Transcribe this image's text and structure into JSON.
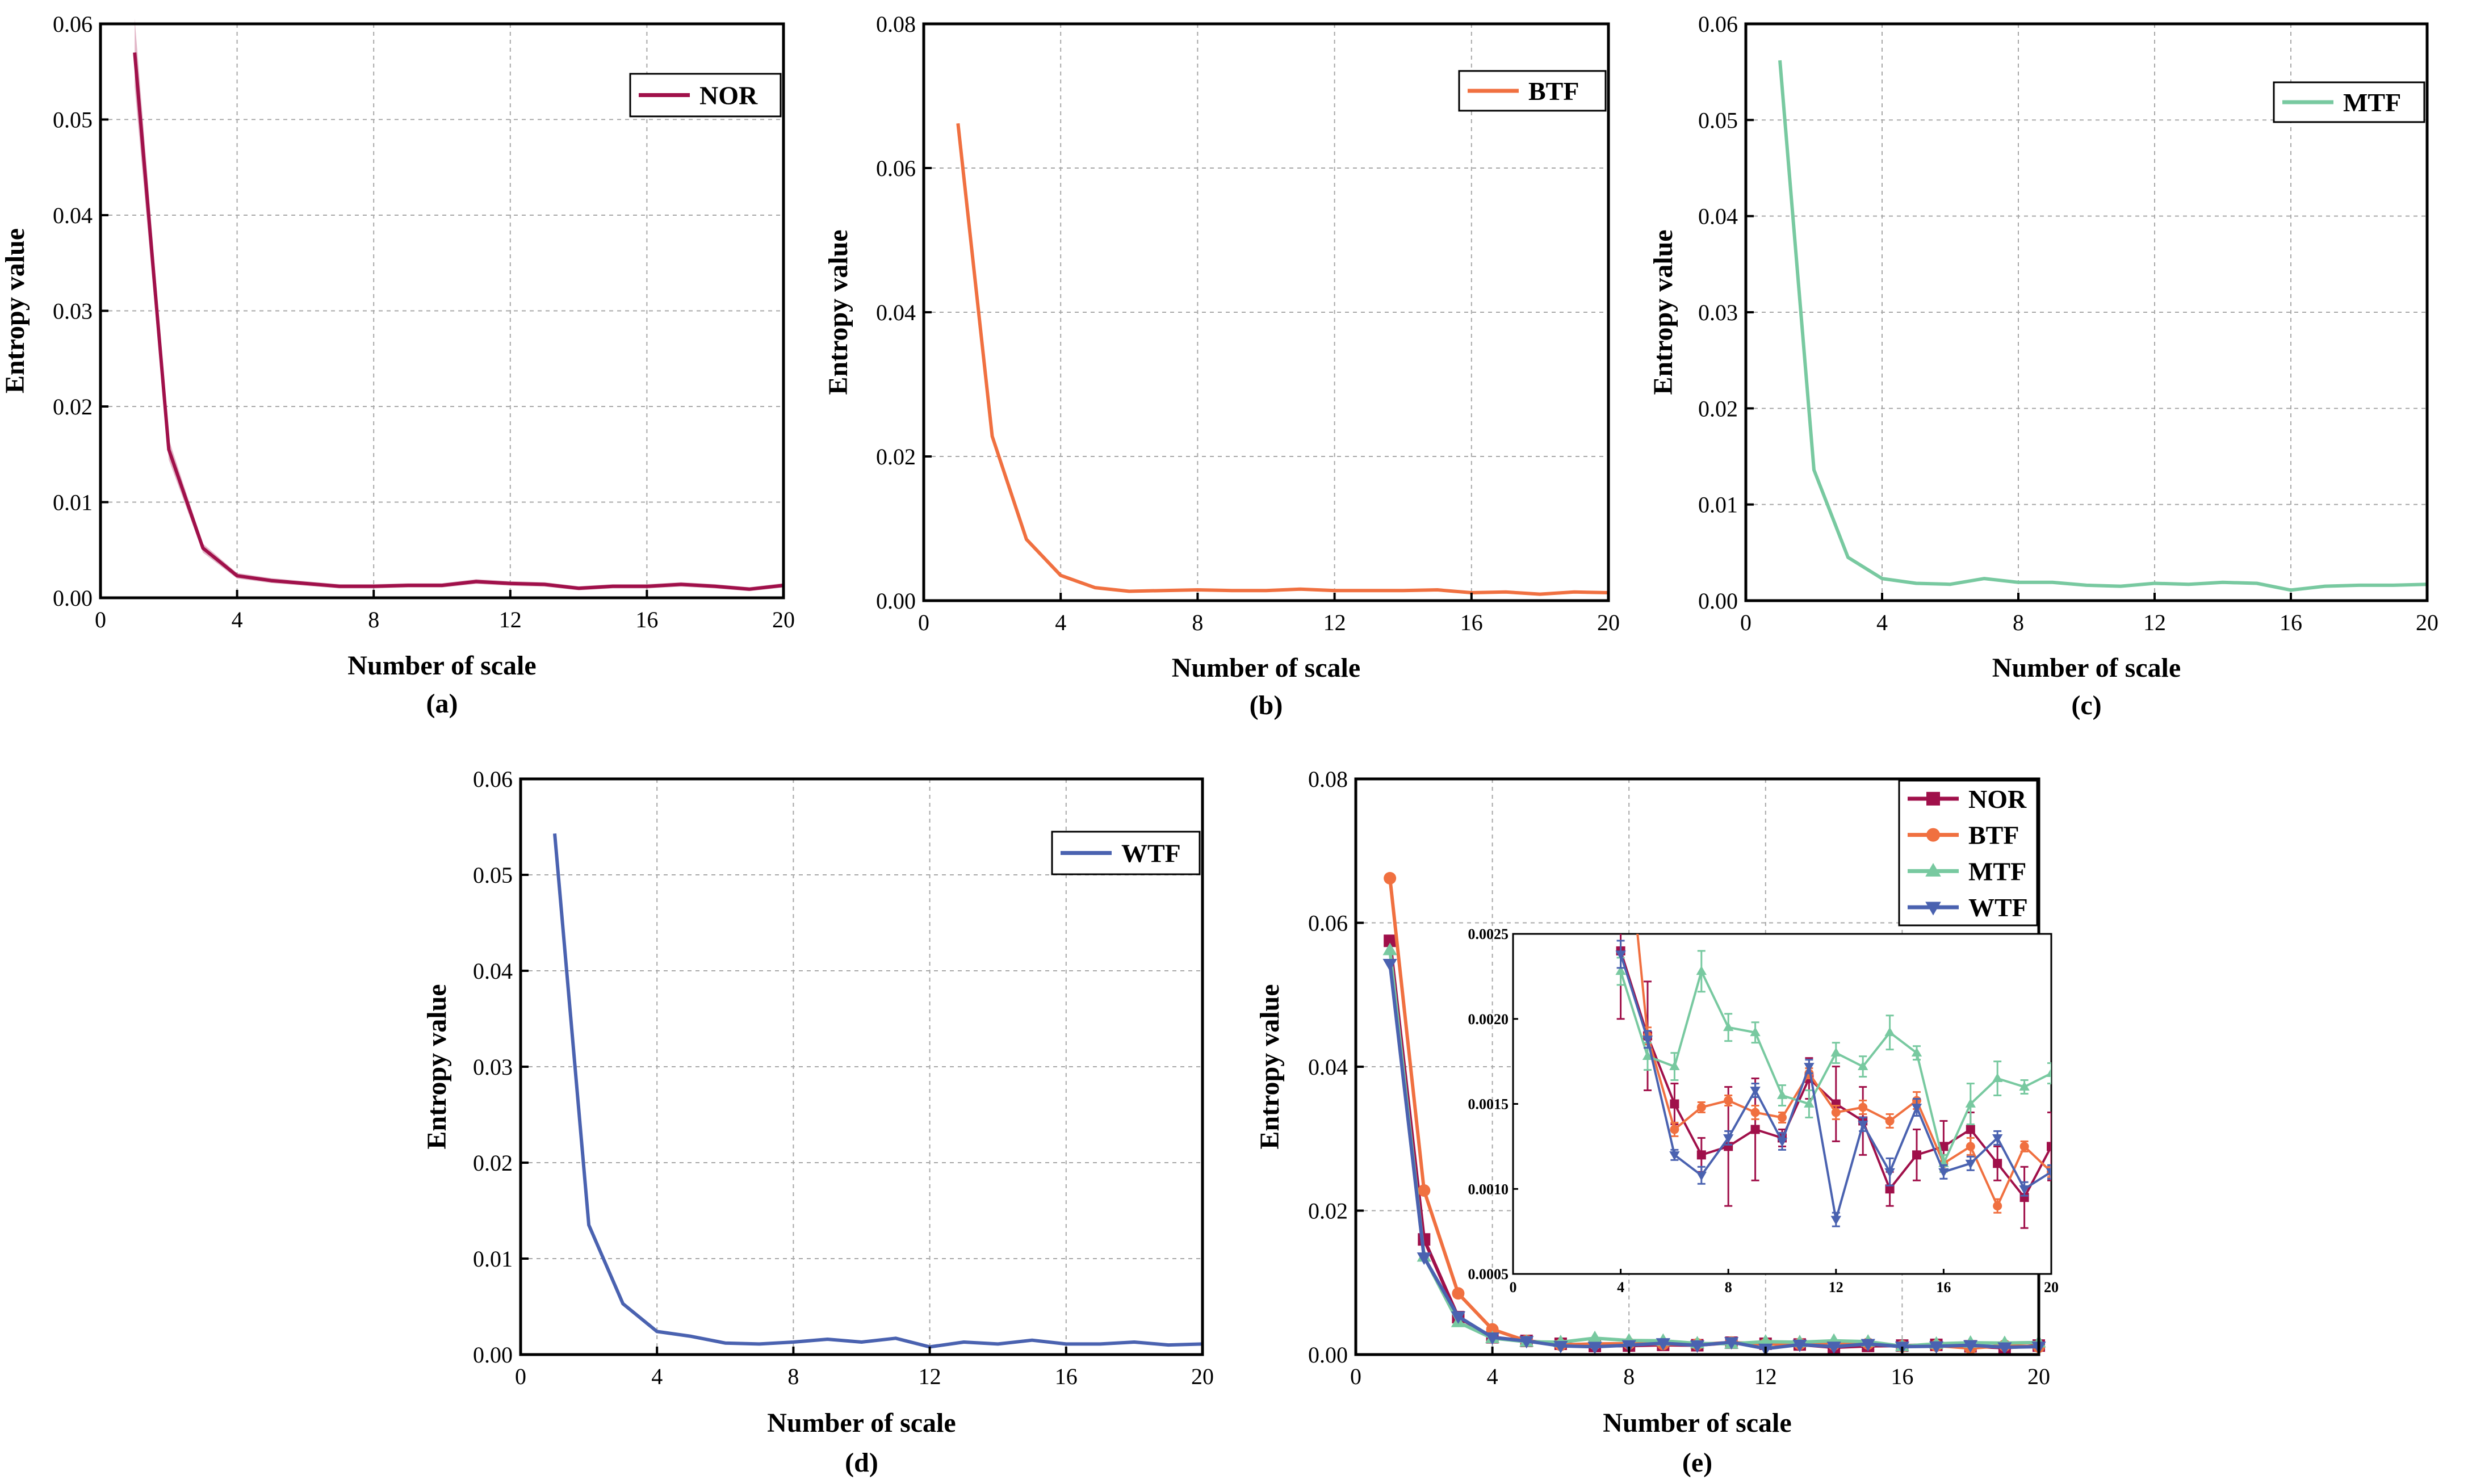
{
  "colors": {
    "NOR": "#a0104a",
    "BTF": "#f07040",
    "MTF": "#78c9a0",
    "WTF": "#4a62b0"
  },
  "chart_data": [
    {
      "id": "a",
      "type": "line",
      "caption": "(a)",
      "xlabel": "Number of scale",
      "ylabel": "Entropy value",
      "xlim": [
        0,
        20
      ],
      "ylim": [
        0,
        0.06
      ],
      "xticks": [
        0,
        4,
        8,
        12,
        16,
        20
      ],
      "yticks": [
        0,
        0.01,
        0.02,
        0.03,
        0.04,
        0.05,
        0.06
      ],
      "ytick_labels": [
        "0.00",
        "0.01",
        "0.02",
        "0.03",
        "0.04",
        "0.05",
        "0.06"
      ],
      "grid": true,
      "legend_position": "top-right",
      "series": [
        {
          "name": "NOR",
          "band": true,
          "x": [
            1,
            2,
            3,
            4,
            5,
            6,
            7,
            8,
            9,
            10,
            11,
            12,
            13,
            14,
            15,
            16,
            17,
            18,
            19,
            20
          ],
          "y": [
            0.057,
            0.0155,
            0.0052,
            0.0023,
            0.0018,
            0.0015,
            0.0012,
            0.0012,
            0.0013,
            0.0013,
            0.0017,
            0.0015,
            0.0014,
            0.001,
            0.0012,
            0.0012,
            0.0014,
            0.0012,
            0.0009,
            0.0013
          ]
        }
      ]
    },
    {
      "id": "b",
      "type": "line",
      "caption": "(b)",
      "xlabel": "Number of scale",
      "ylabel": "Entropy value",
      "xlim": [
        0,
        20
      ],
      "ylim": [
        0,
        0.08
      ],
      "xticks": [
        0,
        4,
        8,
        12,
        16,
        20
      ],
      "yticks": [
        0,
        0.02,
        0.04,
        0.06,
        0.08
      ],
      "ytick_labels": [
        "0.00",
        "0.02",
        "0.04",
        "0.06",
        "0.08"
      ],
      "grid": true,
      "legend_position": "top-right",
      "series": [
        {
          "name": "BTF",
          "x": [
            1,
            2,
            3,
            4,
            5,
            6,
            7,
            8,
            9,
            10,
            11,
            12,
            13,
            14,
            15,
            16,
            17,
            18,
            19,
            20
          ],
          "y": [
            0.0662,
            0.0228,
            0.0085,
            0.0035,
            0.0018,
            0.0013,
            0.0014,
            0.0015,
            0.0014,
            0.0014,
            0.0016,
            0.0014,
            0.0014,
            0.0014,
            0.0015,
            0.0011,
            0.0012,
            0.0009,
            0.0012,
            0.0011
          ]
        }
      ]
    },
    {
      "id": "c",
      "type": "line",
      "caption": "(c)",
      "xlabel": "Number of scale",
      "ylabel": "Entropy value",
      "xlim": [
        0,
        20
      ],
      "ylim": [
        0,
        0.06
      ],
      "xticks": [
        0,
        4,
        8,
        12,
        16,
        20
      ],
      "yticks": [
        0,
        0.01,
        0.02,
        0.03,
        0.04,
        0.05,
        0.06
      ],
      "ytick_labels": [
        "0.00",
        "0.01",
        "0.02",
        "0.03",
        "0.04",
        "0.05",
        "0.06"
      ],
      "grid": true,
      "legend_position": "top-right",
      "series": [
        {
          "name": "MTF",
          "x": [
            1,
            2,
            3,
            4,
            5,
            6,
            7,
            8,
            9,
            10,
            11,
            12,
            13,
            14,
            15,
            16,
            17,
            18,
            19,
            20
          ],
          "y": [
            0.0562,
            0.0136,
            0.0045,
            0.0023,
            0.0018,
            0.0017,
            0.0023,
            0.0019,
            0.0019,
            0.0016,
            0.0015,
            0.0018,
            0.0017,
            0.0019,
            0.0018,
            0.0011,
            0.0015,
            0.0016,
            0.0016,
            0.0017
          ]
        }
      ]
    },
    {
      "id": "d",
      "type": "line",
      "caption": "(d)",
      "xlabel": "Number of scale",
      "ylabel": "Entropy value",
      "xlim": [
        0,
        20
      ],
      "ylim": [
        0,
        0.06
      ],
      "xticks": [
        0,
        4,
        8,
        12,
        16,
        20
      ],
      "yticks": [
        0,
        0.01,
        0.02,
        0.03,
        0.04,
        0.05,
        0.06
      ],
      "ytick_labels": [
        "0.00",
        "0.01",
        "0.02",
        "0.03",
        "0.04",
        "0.05",
        "0.06"
      ],
      "grid": true,
      "legend_position": "top-right",
      "series": [
        {
          "name": "WTF",
          "x": [
            1,
            2,
            3,
            4,
            5,
            6,
            7,
            8,
            9,
            10,
            11,
            12,
            13,
            14,
            15,
            16,
            17,
            18,
            19,
            20
          ],
          "y": [
            0.0543,
            0.0135,
            0.0053,
            0.0024,
            0.0019,
            0.0012,
            0.0011,
            0.0013,
            0.0016,
            0.0013,
            0.0017,
            0.0008,
            0.0013,
            0.0011,
            0.0015,
            0.0011,
            0.0011,
            0.0013,
            0.001,
            0.0011
          ]
        }
      ]
    },
    {
      "id": "e",
      "type": "line",
      "caption": "(e)",
      "xlabel": "Number of scale",
      "ylabel": "Entropy value",
      "xlim": [
        0,
        20
      ],
      "ylim": [
        0,
        0.08
      ],
      "xticks": [
        0,
        4,
        8,
        12,
        16,
        20
      ],
      "yticks": [
        0,
        0.02,
        0.04,
        0.06,
        0.08
      ],
      "ytick_labels": [
        "0.00",
        "0.02",
        "0.04",
        "0.06",
        "0.08"
      ],
      "grid": true,
      "legend_position": "top-right",
      "markers": true,
      "series": [
        {
          "name": "NOR",
          "marker": "square",
          "x": [
            1,
            2,
            3,
            4,
            5,
            6,
            7,
            8,
            9,
            10,
            11,
            12,
            13,
            14,
            15,
            16,
            17,
            18,
            19,
            20
          ],
          "y": [
            0.0575,
            0.016,
            0.0052,
            0.0024,
            0.0019,
            0.0015,
            0.0012,
            0.00125,
            0.00135,
            0.0013,
            0.00165,
            0.0015,
            0.0014,
            0.001,
            0.0012,
            0.00125,
            0.00135,
            0.00115,
            0.00095,
            0.00125
          ]
        },
        {
          "name": "BTF",
          "marker": "circle",
          "x": [
            1,
            2,
            3,
            4,
            5,
            6,
            7,
            8,
            9,
            10,
            11,
            12,
            13,
            14,
            15,
            16,
            17,
            18,
            19,
            20
          ],
          "y": [
            0.0662,
            0.0228,
            0.0085,
            0.0035,
            0.0019,
            0.00135,
            0.00148,
            0.00152,
            0.00145,
            0.00142,
            0.00168,
            0.00145,
            0.00148,
            0.0014,
            0.00152,
            0.00115,
            0.00125,
            0.0009,
            0.00125,
            0.0011
          ]
        },
        {
          "name": "MTF",
          "marker": "triangle-up",
          "x": [
            1,
            2,
            3,
            4,
            5,
            6,
            7,
            8,
            9,
            10,
            11,
            12,
            13,
            14,
            15,
            16,
            17,
            18,
            19,
            20
          ],
          "y": [
            0.0562,
            0.0136,
            0.0045,
            0.00228,
            0.00178,
            0.00172,
            0.00228,
            0.00195,
            0.00192,
            0.00155,
            0.0015,
            0.0018,
            0.00172,
            0.00192,
            0.0018,
            0.00115,
            0.0015,
            0.00165,
            0.0016,
            0.00168
          ]
        },
        {
          "name": "WTF",
          "marker": "triangle-down",
          "x": [
            1,
            2,
            3,
            4,
            5,
            6,
            7,
            8,
            9,
            10,
            11,
            12,
            13,
            14,
            15,
            16,
            17,
            18,
            19,
            20
          ],
          "y": [
            0.0543,
            0.0135,
            0.0053,
            0.00238,
            0.00188,
            0.0012,
            0.00108,
            0.0013,
            0.00158,
            0.00128,
            0.00172,
            0.00082,
            0.00138,
            0.0011,
            0.00148,
            0.0011,
            0.00115,
            0.0013,
            0.001,
            0.0011
          ]
        }
      ],
      "inset": {
        "xlim": [
          0,
          20
        ],
        "ylim": [
          0.0005,
          0.0025
        ],
        "xticks": [
          0,
          4,
          8,
          12,
          16,
          20
        ],
        "yticks": [
          0.0005,
          0.001,
          0.0015,
          0.002,
          0.0025
        ],
        "ytick_labels": [
          "0.0005",
          "0.0010",
          "0.0015",
          "0.0020",
          "0.0025"
        ],
        "x_from": 4,
        "errors": {
          "NOR": [
            0,
            0,
            0,
            0.0004,
            0.00032,
            0.00012,
            0.0001,
            0.00035,
            0.0003,
            5e-05,
            0.00012,
            0.00022,
            0.0002,
            0.0001,
            0.00015,
            0.00015,
            0.0001,
            0.0001,
            0.00018,
            0.0002
          ],
          "BTF": [
            0,
            0,
            0,
            0.0001,
            5e-05,
            4e-05,
            3e-05,
            3e-05,
            4e-05,
            3e-05,
            3e-05,
            4e-05,
            4e-05,
            4e-05,
            5e-05,
            5e-05,
            5e-05,
            4e-05,
            3e-05,
            3e-05
          ],
          "MTF": [
            0,
            0,
            0,
            8e-05,
            8e-05,
            8e-05,
            0.00012,
            8e-05,
            6e-05,
            6e-05,
            8e-05,
            6e-05,
            6e-05,
            0.0001,
            4e-05,
            5e-05,
            0.00012,
            0.0001,
            4e-05,
            6e-05
          ],
          "WTF": [
            0,
            0,
            0,
            8e-05,
            5e-05,
            3e-05,
            5e-05,
            4e-05,
            4e-05,
            5e-05,
            4e-05,
            4e-05,
            4e-05,
            8e-05,
            5e-05,
            4e-05,
            4e-05,
            4e-05,
            4e-05,
            4e-05
          ]
        }
      }
    }
  ]
}
